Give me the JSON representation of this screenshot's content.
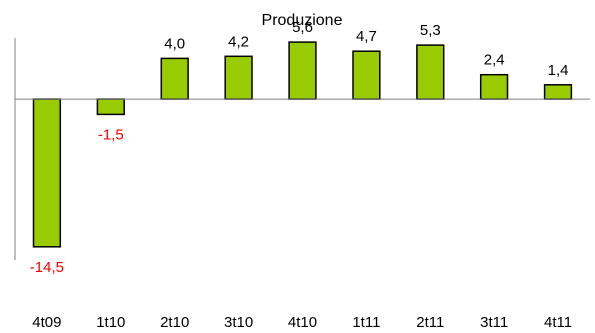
{
  "chart_data": {
    "type": "bar",
    "title": "Produzione",
    "categories": [
      "4t09",
      "1t10",
      "2t10",
      "3t10",
      "4t10",
      "1t11",
      "2t11",
      "3t11",
      "4t11"
    ],
    "values": [
      -14.5,
      -1.5,
      4.0,
      4.2,
      5.6,
      4.7,
      5.3,
      2.4,
      1.4
    ],
    "data_labels": [
      "-14,5",
      "-1,5",
      "4,0",
      "4,2",
      "5,6",
      "4,7",
      "5,3",
      "2,4",
      "1,4"
    ],
    "xlabel": "",
    "ylabel": "",
    "ylim": [
      -15.8,
      6.0
    ],
    "grid": false,
    "legend": "none",
    "colors": {
      "bar_fill": "#99cc00",
      "bar_stroke": "#000000",
      "positive_label": "#000000",
      "negative_label": "#ff0000",
      "axis": "#808080"
    }
  }
}
